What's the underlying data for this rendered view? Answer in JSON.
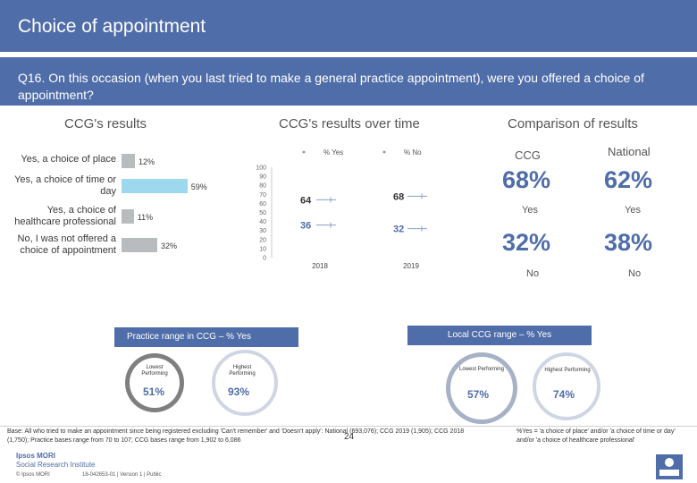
{
  "header": {
    "title": "Choice of appointment",
    "question": "Q16. On this occasion (when you last tried to make a general practice appointment), were you offered a choice of appointment?"
  },
  "sections": {
    "ccg_results": "CCG's results",
    "ccg_over_time": "CCG's results over time",
    "comparison": "Comparison of results"
  },
  "chart_data": [
    {
      "type": "bar",
      "orientation": "horizontal",
      "categories": [
        "Yes, a choice of place",
        "Yes, a choice of time or day",
        "Yes, a choice of healthcare professional",
        "No, I was not offered a choice of appointment"
      ],
      "values": [
        12,
        59,
        11,
        32
      ],
      "value_labels": [
        "12%",
        "59%",
        "11%",
        "32%"
      ],
      "highlight_index": 1
    },
    {
      "type": "line",
      "x": [
        "2018",
        "2019"
      ],
      "yticks": [
        "0",
        "10",
        "20",
        "30",
        "40",
        "50",
        "60",
        "70",
        "80",
        "90",
        "100"
      ],
      "ylim": [
        0,
        100
      ],
      "series": [
        {
          "name": "% Yes",
          "values": [
            64,
            68
          ],
          "labels": [
            "64",
            "68"
          ]
        },
        {
          "name": "% No",
          "values": [
            36,
            32
          ],
          "labels": [
            "36",
            "32"
          ]
        }
      ]
    }
  ],
  "comparison": {
    "ccg_label": "CCG",
    "national_label": "National",
    "ccg_yes": "68%",
    "national_yes": "62%",
    "yes_label": "Yes",
    "ccg_no": "32%",
    "national_no": "38%",
    "no_label": "No"
  },
  "practice_range": {
    "title": "Practice range in CCG – % Yes",
    "lowest_label": "Lowest Performing",
    "highest_label": "Highest Performing",
    "lowest_value": "51%",
    "highest_value": "93%"
  },
  "local_range": {
    "title": "Local CCG range – % Yes",
    "lowest_label": "Lowest Performing",
    "highest_label": "Highest Performing",
    "lowest_value": "57%",
    "highest_value": "74%"
  },
  "footer": {
    "base": "Base: All who tried to make an appointment since being registered excluding 'Can't remember' and 'Doesn't apply': National (693,076); CCG 2019 (1,905); CCG 2018 (1,750); Practice bases range from 70 to 107; CCG bases range from 1,902 to 6,086",
    "note": "%Yes = 'a choice of place' and/or 'a choice of time or day' and/or 'a choice of healthcare professional'",
    "page_number": "24",
    "logo_line1": "Ipsos MORI",
    "logo_line2": "Social Research Institute",
    "copyright": "© Ipsos MORI",
    "reference": "18-042653-01 | Version 1 | Public"
  },
  "colors": {
    "brand_blue": "#4f6da8",
    "bar_grey": "#b9bcbf",
    "bar_highlight": "#9ed8ef"
  }
}
